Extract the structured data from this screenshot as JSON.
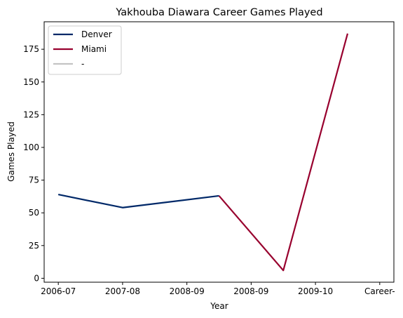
{
  "chart_data": {
    "type": "line",
    "title": "Yakhouba Diawara Career Games Played",
    "xlabel": "Year",
    "ylabel": "Games Played",
    "categories": [
      "2006-07",
      "2007-08",
      "2008-09",
      "2008-09",
      "2009-10",
      "Career-"
    ],
    "ylim": [
      -3,
      196
    ],
    "yticks": [
      0,
      25,
      50,
      75,
      100,
      125,
      150,
      175
    ],
    "grid": false,
    "legend_position": "upper left",
    "series": [
      {
        "name": "Denver",
        "color": "#002868",
        "x": [
          0,
          1,
          2.5
        ],
        "values": [
          64,
          54,
          63
        ]
      },
      {
        "name": "Miami",
        "color": "#98002E",
        "x": [
          2.5,
          3.5,
          4.5
        ],
        "values": [
          63,
          6,
          187
        ]
      },
      {
        "name": "-",
        "color": "#C4C4C4",
        "x": [],
        "values": []
      }
    ]
  }
}
